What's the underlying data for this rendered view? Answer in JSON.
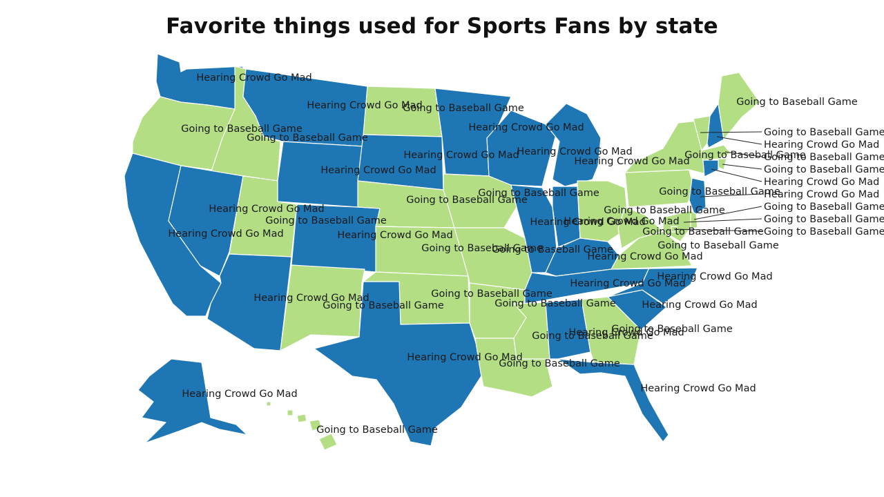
{
  "title": "Favorite things used for Sports Fans by state",
  "colors": {
    "Hearing Crowd Go Mad": "#1f76b4",
    "Going to Baseball Game": "#b3de83"
  },
  "states": [
    {
      "id": "WA",
      "value": "Hearing Crowd Go Mad"
    },
    {
      "id": "OR",
      "value": "Going to Baseball Game"
    },
    {
      "id": "CA",
      "value": "Hearing Crowd Go Mad"
    },
    {
      "id": "ID",
      "value": "Going to Baseball Game"
    },
    {
      "id": "NV",
      "value": "Hearing Crowd Go Mad"
    },
    {
      "id": "MT",
      "value": "Hearing Crowd Go Mad"
    },
    {
      "id": "WY",
      "value": "Hearing Crowd Go Mad"
    },
    {
      "id": "UT",
      "value": "Going to Baseball Game"
    },
    {
      "id": "AZ",
      "value": "Hearing Crowd Go Mad"
    },
    {
      "id": "CO",
      "value": "Hearing Crowd Go Mad"
    },
    {
      "id": "NM",
      "value": "Going to Baseball Game"
    },
    {
      "id": "ND",
      "value": "Going to Baseball Game"
    },
    {
      "id": "SD",
      "value": "Hearing Crowd Go Mad"
    },
    {
      "id": "NE",
      "value": "Going to Baseball Game"
    },
    {
      "id": "KS",
      "value": "Going to Baseball Game"
    },
    {
      "id": "OK",
      "value": "Going to Baseball Game"
    },
    {
      "id": "TX",
      "value": "Hearing Crowd Go Mad"
    },
    {
      "id": "MN",
      "value": "Hearing Crowd Go Mad"
    },
    {
      "id": "IA",
      "value": "Going to Baseball Game"
    },
    {
      "id": "MO",
      "value": "Going to Baseball Game"
    },
    {
      "id": "AR",
      "value": "Going to Baseball Game"
    },
    {
      "id": "LA",
      "value": "Going to Baseball Game"
    },
    {
      "id": "WI",
      "value": "Hearing Crowd Go Mad"
    },
    {
      "id": "IL",
      "value": "Hearing Crowd Go Mad"
    },
    {
      "id": "MI",
      "value": "Hearing Crowd Go Mad"
    },
    {
      "id": "IN",
      "value": "Hearing Crowd Go Mad"
    },
    {
      "id": "OH",
      "value": "Going to Baseball Game"
    },
    {
      "id": "KY",
      "value": "Hearing Crowd Go Mad"
    },
    {
      "id": "TN",
      "value": "Hearing Crowd Go Mad"
    },
    {
      "id": "MS",
      "value": "Going to Baseball Game"
    },
    {
      "id": "AL",
      "value": "Hearing Crowd Go Mad"
    },
    {
      "id": "GA",
      "value": "Going to Baseball Game"
    },
    {
      "id": "FL",
      "value": "Hearing Crowd Go Mad"
    },
    {
      "id": "SC",
      "value": "Hearing Crowd Go Mad"
    },
    {
      "id": "NC",
      "value": "Hearing Crowd Go Mad"
    },
    {
      "id": "VA",
      "value": "Going to Baseball Game"
    },
    {
      "id": "WV",
      "value": "Going to Baseball Game"
    },
    {
      "id": "PA",
      "value": "Going to Baseball Game"
    },
    {
      "id": "NY",
      "value": "Going to Baseball Game"
    },
    {
      "id": "VT",
      "value": "Going to Baseball Game"
    },
    {
      "id": "NH",
      "value": "Hearing Crowd Go Mad"
    },
    {
      "id": "ME",
      "value": "Going to Baseball Game"
    },
    {
      "id": "MA",
      "value": "Going to Baseball Game"
    },
    {
      "id": "RI",
      "value": "Going to Baseball Game"
    },
    {
      "id": "CT",
      "value": "Hearing Crowd Go Mad"
    },
    {
      "id": "NJ",
      "value": "Hearing Crowd Go Mad"
    },
    {
      "id": "DE",
      "value": "Going to Baseball Game"
    },
    {
      "id": "MD",
      "value": "Going to Baseball Game"
    },
    {
      "id": "DC",
      "value": "Going to Baseball Game"
    },
    {
      "id": "AK",
      "value": "Hearing Crowd Go Mad"
    },
    {
      "id": "HI",
      "value": "Going to Baseball Game"
    }
  ]
}
